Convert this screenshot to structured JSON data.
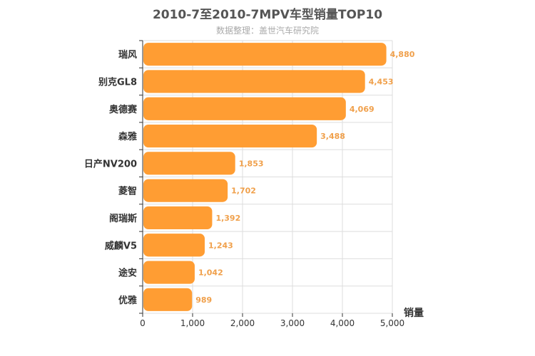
{
  "chart_data": {
    "type": "bar",
    "orientation": "horizontal",
    "title": "2010-7至2010-7MPV车型销量TOP10",
    "subtitle": "数据整理：盖世汽车研究院",
    "categories": [
      "瑞风",
      "别克GL8",
      "奥德赛",
      "森雅",
      "日产NV200",
      "菱智",
      "阁瑞斯",
      "威麟V5",
      "途安",
      "优雅"
    ],
    "values": [
      4880,
      4453,
      4069,
      3488,
      1853,
      1702,
      1392,
      1243,
      1042,
      989
    ],
    "value_labels": [
      "4,880",
      "4,453",
      "4,069",
      "3,488",
      "1,853",
      "1,702",
      "1,392",
      "1,243",
      "1,042",
      "989"
    ],
    "xlabel": "销量",
    "ylabel": "",
    "xlim": [
      0,
      5000
    ],
    "x_ticks": [
      0,
      1000,
      2000,
      3000,
      4000,
      5000
    ],
    "x_tick_labels": [
      "0",
      "1,000",
      "2,000",
      "3,000",
      "4,000",
      "5,000"
    ],
    "grid": true,
    "colors": {
      "bar": "#ff9d33",
      "value_label": "#f0a04b",
      "grid": "#dddddd",
      "axis": "#333333",
      "title": "#555555",
      "subtitle": "#aaaaaa"
    }
  }
}
